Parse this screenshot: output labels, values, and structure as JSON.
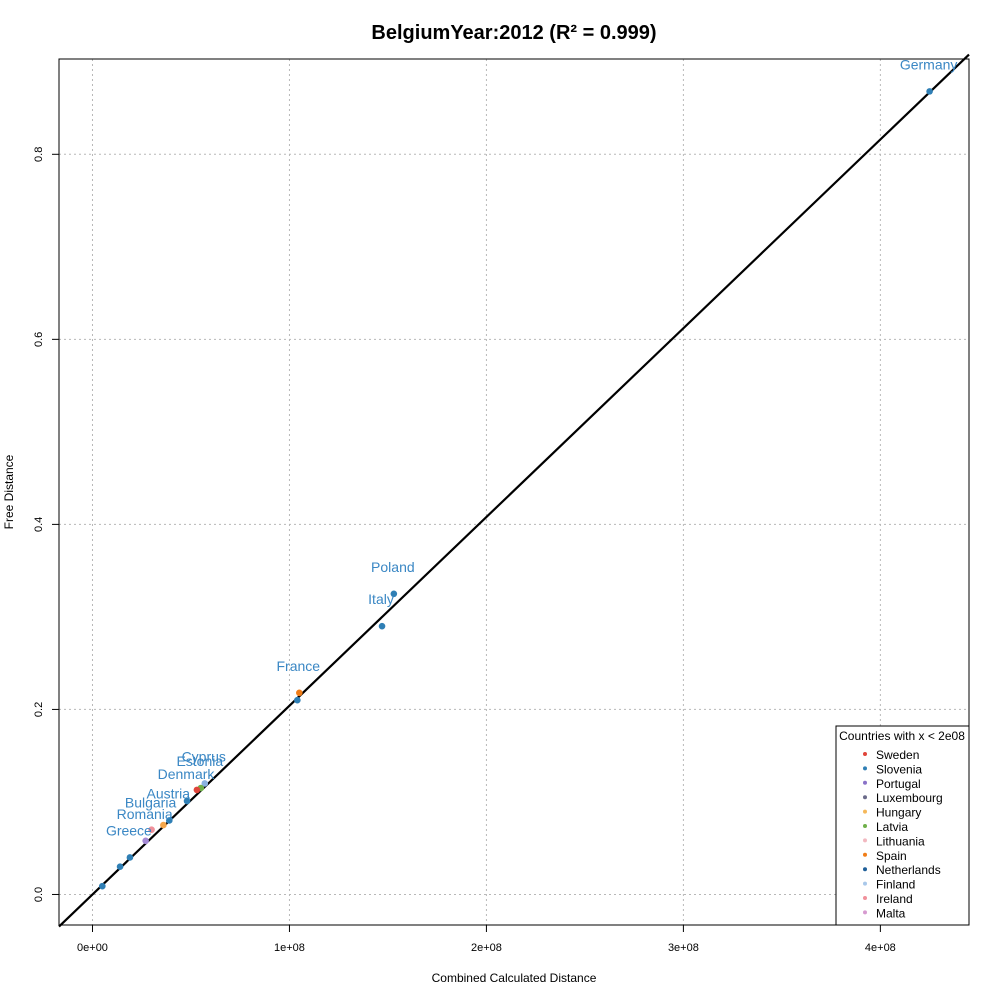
{
  "chart_data": {
    "type": "scatter",
    "title": "BelgiumYear:2012 (R² = 0.999)",
    "xlabel": "Combined Calculated Distance",
    "ylabel": "Free Distance",
    "xlim": [
      -17000000,
      445000000
    ],
    "ylim": [
      -0.033,
      0.903
    ],
    "x_ticks": [
      0,
      100000000,
      200000000,
      300000000,
      400000000
    ],
    "x_tick_labels": [
      "0e+00",
      "1e+08",
      "2e+08",
      "3e+08",
      "4e+08"
    ],
    "y_ticks": [
      0.0,
      0.2,
      0.4,
      0.6,
      0.8
    ],
    "y_tick_labels": [
      "0.0",
      "0.2",
      "0.4",
      "0.6",
      "0.8"
    ],
    "grid": true,
    "fit_line": {
      "slope": 2.04e-09,
      "intercept": 0.0
    },
    "points": [
      {
        "x": 425000000,
        "y": 0.868,
        "color": "#2f7fb5",
        "label": "Germany"
      },
      {
        "x": 153000000,
        "y": 0.325,
        "color": "#2f7fb5",
        "label": "Poland"
      },
      {
        "x": 147000000,
        "y": 0.29,
        "color": "#2f7fb5",
        "label": "Italy"
      },
      {
        "x": 105000000,
        "y": 0.218,
        "color": "#f07d18",
        "label": "France"
      },
      {
        "x": 104000000,
        "y": 0.21,
        "color": "#2f7fb5",
        "label": ""
      },
      {
        "x": 57000000,
        "y": 0.12,
        "color": "#8ab1e0",
        "label": "Cyprus"
      },
      {
        "x": 55000000,
        "y": 0.115,
        "color": "#6fb04a",
        "label": "Estonia"
      },
      {
        "x": 53000000,
        "y": 0.113,
        "color": "#e0453a",
        "label": ""
      },
      {
        "x": 48000000,
        "y": 0.101,
        "color": "#2f7fb5",
        "label": "Denmark"
      },
      {
        "x": 39000000,
        "y": 0.08,
        "color": "#2f7fb5",
        "label": "Austria"
      },
      {
        "x": 36000000,
        "y": 0.075,
        "color": "#f5a64b",
        "label": ""
      },
      {
        "x": 30000000,
        "y": 0.07,
        "color": "#f0919b",
        "label": "Bulgaria"
      },
      {
        "x": 27000000,
        "y": 0.058,
        "color": "#a58ad6",
        "label": "Romania"
      },
      {
        "x": 19000000,
        "y": 0.04,
        "color": "#2f7fb5",
        "label": "Greece"
      },
      {
        "x": 14000000,
        "y": 0.03,
        "color": "#2f7fb5",
        "label": ""
      },
      {
        "x": 5000000,
        "y": 0.009,
        "color": "#2f7fb5",
        "label": ""
      }
    ],
    "label_color": "#3a87c4",
    "legend": {
      "title": "Countries with x < 2e08",
      "position": "bottom-right",
      "items": [
        {
          "name": "Sweden",
          "color": "#e0453a"
        },
        {
          "name": "Slovenia",
          "color": "#2f7fb5"
        },
        {
          "name": "Portugal",
          "color": "#8a72c8"
        },
        {
          "name": "Luxembourg",
          "color": "#6b6b8a"
        },
        {
          "name": "Hungary",
          "color": "#f5b85a"
        },
        {
          "name": "Latvia",
          "color": "#6fb04a"
        },
        {
          "name": "Lithuania",
          "color": "#f2b8c0"
        },
        {
          "name": "Spain",
          "color": "#f07d18"
        },
        {
          "name": "Netherlands",
          "color": "#1f5f99"
        },
        {
          "name": "Finland",
          "color": "#a9c8ea"
        },
        {
          "name": "Ireland",
          "color": "#f0919b"
        },
        {
          "name": "Malta",
          "color": "#d69ad0"
        }
      ]
    }
  }
}
